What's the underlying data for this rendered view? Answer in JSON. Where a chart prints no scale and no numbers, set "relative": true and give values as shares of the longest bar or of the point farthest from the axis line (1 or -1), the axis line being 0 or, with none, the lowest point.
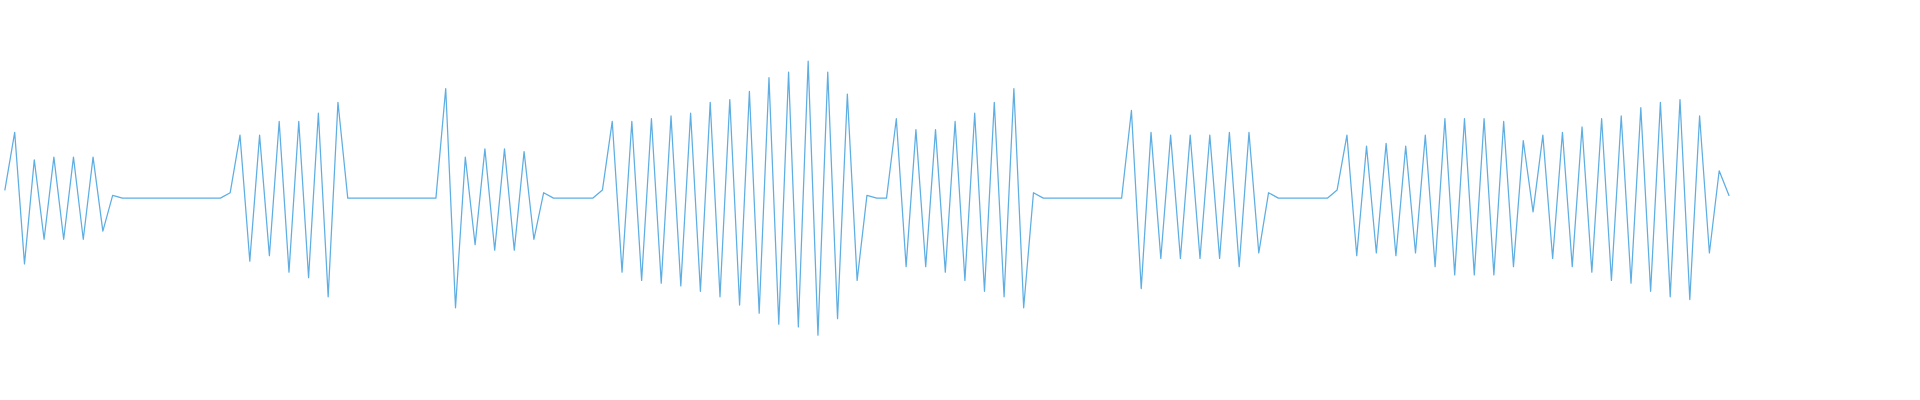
{
  "chart_data": {
    "type": "line",
    "relative": true,
    "categories": [
      null,
      null,
      null,
      null,
      null,
      null,
      null,
      null,
      null,
      null,
      null,
      null,
      null,
      null,
      null,
      null,
      null,
      null,
      null,
      null,
      null,
      null,
      null,
      null,
      null,
      null,
      null,
      null,
      null,
      null,
      null,
      null,
      null,
      null,
      null,
      null,
      null,
      null,
      null,
      null,
      null,
      null,
      null,
      null,
      null,
      null,
      null,
      null,
      null,
      null,
      null,
      null,
      null,
      null,
      null,
      null,
      null,
      null,
      null,
      null,
      null,
      null,
      null,
      null,
      null,
      null,
      null,
      null,
      null,
      null,
      null,
      null,
      null,
      null,
      null,
      null,
      null,
      null,
      null,
      null,
      null,
      null,
      null,
      null,
      null,
      null,
      null,
      null,
      null,
      null,
      null,
      null,
      null,
      null,
      null,
      null,
      null,
      null,
      null,
      null,
      null,
      null,
      null,
      null,
      null,
      null,
      null,
      null,
      null,
      null,
      null,
      null,
      null,
      null,
      null,
      null,
      null,
      null,
      null,
      null,
      null,
      null,
      null,
      null,
      null,
      null,
      null,
      null,
      null,
      null,
      null,
      null,
      null,
      null,
      null,
      null,
      null,
      null,
      null,
      null,
      null,
      null,
      null,
      null,
      null,
      null,
      null,
      null,
      null,
      null,
      null,
      null,
      null,
      null,
      null,
      null,
      null,
      null,
      null,
      null,
      null,
      null,
      null,
      null,
      null,
      null,
      null,
      null,
      null,
      null,
      null,
      null,
      null,
      null,
      null,
      null,
      null
    ],
    "series": [
      {
        "color": "#5eaee3",
        "values": [
          0.53,
          0.74,
          0.26,
          0.64,
          0.35,
          0.65,
          0.35,
          0.65,
          0.35,
          0.65,
          0.38,
          0.51,
          0.5,
          0.5,
          0.5,
          0.5,
          0.5,
          0.5,
          0.5,
          0.5,
          0.5,
          0.5,
          0.5,
          0.52,
          0.73,
          0.27,
          0.73,
          0.29,
          0.78,
          0.23,
          0.78,
          0.21,
          0.81,
          0.14,
          0.85,
          0.5,
          0.5,
          0.5,
          0.5,
          0.5,
          0.5,
          0.5,
          0.5,
          0.5,
          0.5,
          0.9,
          0.1,
          0.65,
          0.33,
          0.68,
          0.31,
          0.68,
          0.31,
          0.67,
          0.35,
          0.52,
          0.5,
          0.5,
          0.5,
          0.5,
          0.5,
          0.53,
          0.78,
          0.23,
          0.78,
          0.2,
          0.79,
          0.19,
          0.8,
          0.18,
          0.81,
          0.16,
          0.85,
          0.14,
          0.86,
          0.11,
          0.89,
          0.08,
          0.94,
          0.04,
          0.96,
          0.03,
          1.0,
          0.0,
          0.96,
          0.06,
          0.88,
          0.2,
          0.51,
          0.5,
          0.5,
          0.79,
          0.25,
          0.75,
          0.25,
          0.75,
          0.23,
          0.78,
          0.2,
          0.81,
          0.16,
          0.85,
          0.14,
          0.9,
          0.1,
          0.52,
          0.5,
          0.5,
          0.5,
          0.5,
          0.5,
          0.5,
          0.5,
          0.5,
          0.5,
          0.82,
          0.17,
          0.74,
          0.28,
          0.73,
          0.28,
          0.73,
          0.28,
          0.73,
          0.28,
          0.74,
          0.25,
          0.74,
          0.3,
          0.52,
          0.5,
          0.5,
          0.5,
          0.5,
          0.5,
          0.5,
          0.53,
          0.73,
          0.29,
          0.69,
          0.3,
          0.7,
          0.29,
          0.69,
          0.3,
          0.73,
          0.25,
          0.79,
          0.22,
          0.79,
          0.22,
          0.79,
          0.22,
          0.78,
          0.25,
          0.71,
          0.45,
          0.73,
          0.28,
          0.74,
          0.25,
          0.76,
          0.23,
          0.79,
          0.2,
          0.8,
          0.19,
          0.83,
          0.16,
          0.85,
          0.14,
          0.86,
          0.13,
          0.8,
          0.3,
          0.6,
          0.51
        ]
      }
    ]
  }
}
